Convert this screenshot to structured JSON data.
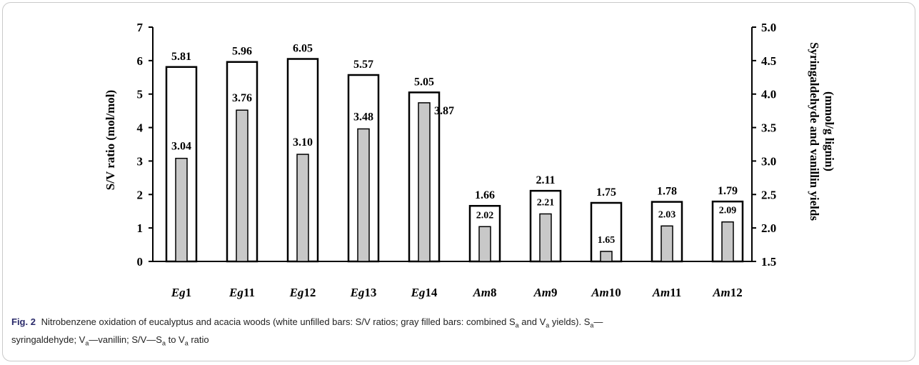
{
  "chart_data": {
    "type": "bar",
    "categories": [
      {
        "prefix": "Eg",
        "num": "1"
      },
      {
        "prefix": "Eg",
        "num": "11"
      },
      {
        "prefix": "Eg",
        "num": "12"
      },
      {
        "prefix": "Eg",
        "num": "13"
      },
      {
        "prefix": "Eg",
        "num": "14"
      },
      {
        "prefix": "Am",
        "num": "8"
      },
      {
        "prefix": "Am",
        "num": "9"
      },
      {
        "prefix": "Am",
        "num": "10"
      },
      {
        "prefix": "Am",
        "num": "11"
      },
      {
        "prefix": "Am",
        "num": "12"
      }
    ],
    "series": [
      {
        "axis": "left",
        "values": [
          5.81,
          5.96,
          6.05,
          5.57,
          5.05,
          1.66,
          2.11,
          1.75,
          1.78,
          1.79
        ],
        "labels": [
          "5.81",
          "5.96",
          "6.05",
          "5.57",
          "5.05",
          "1.66",
          "2.11",
          "1.75",
          "1.78",
          "1.79"
        ],
        "fill": "#ffffff",
        "stroke": "#000000"
      },
      {
        "axis": "right",
        "values": [
          3.04,
          3.76,
          3.1,
          3.48,
          3.87,
          2.02,
          2.21,
          1.65,
          2.03,
          2.09
        ],
        "labels": [
          "3.04",
          "3.76",
          "3.10",
          "3.48",
          "3.87",
          "2.02",
          "2.21",
          "1.65",
          "2.03",
          "2.09"
        ],
        "fill": "#c8c8c8",
        "stroke": "#000000"
      }
    ],
    "ylabel": "S/V ratio (mol/mol)",
    "ylim": [
      0,
      7
    ],
    "yticks": [
      "0",
      "1",
      "2",
      "3",
      "4",
      "5",
      "6",
      "7"
    ],
    "y2label_line1": "Syringaldehyde and vanillin yields",
    "y2label_line2": "(mmol/g lignin)",
    "y2lim": [
      1.5,
      5.0
    ],
    "y2ticks": [
      "1.5",
      "2.0",
      "2.5",
      "3.0",
      "3.5",
      "4.0",
      "4.5",
      "5.0"
    ],
    "grid": false
  },
  "caption": {
    "fig_label": "Fig. 2",
    "line1": "Nitrobenzene oxidation of eucalyptus and acacia woods (white unfilled bars: S/V ratios; gray filled bars: combined S",
    "sub_a": "a",
    "and_v": " and V",
    "sub_a2": "a",
    "line1_end": " yields). S",
    "sub_a3": "a",
    "dash": "—",
    "line2_start": "syringaldehyde; V",
    "sub_a4": "a",
    "line2_mid": "—vanillin; S/V—S",
    "sub_a5": "a",
    "line2_to": " to V",
    "sub_a6": "a",
    "line2_end": " ratio"
  }
}
